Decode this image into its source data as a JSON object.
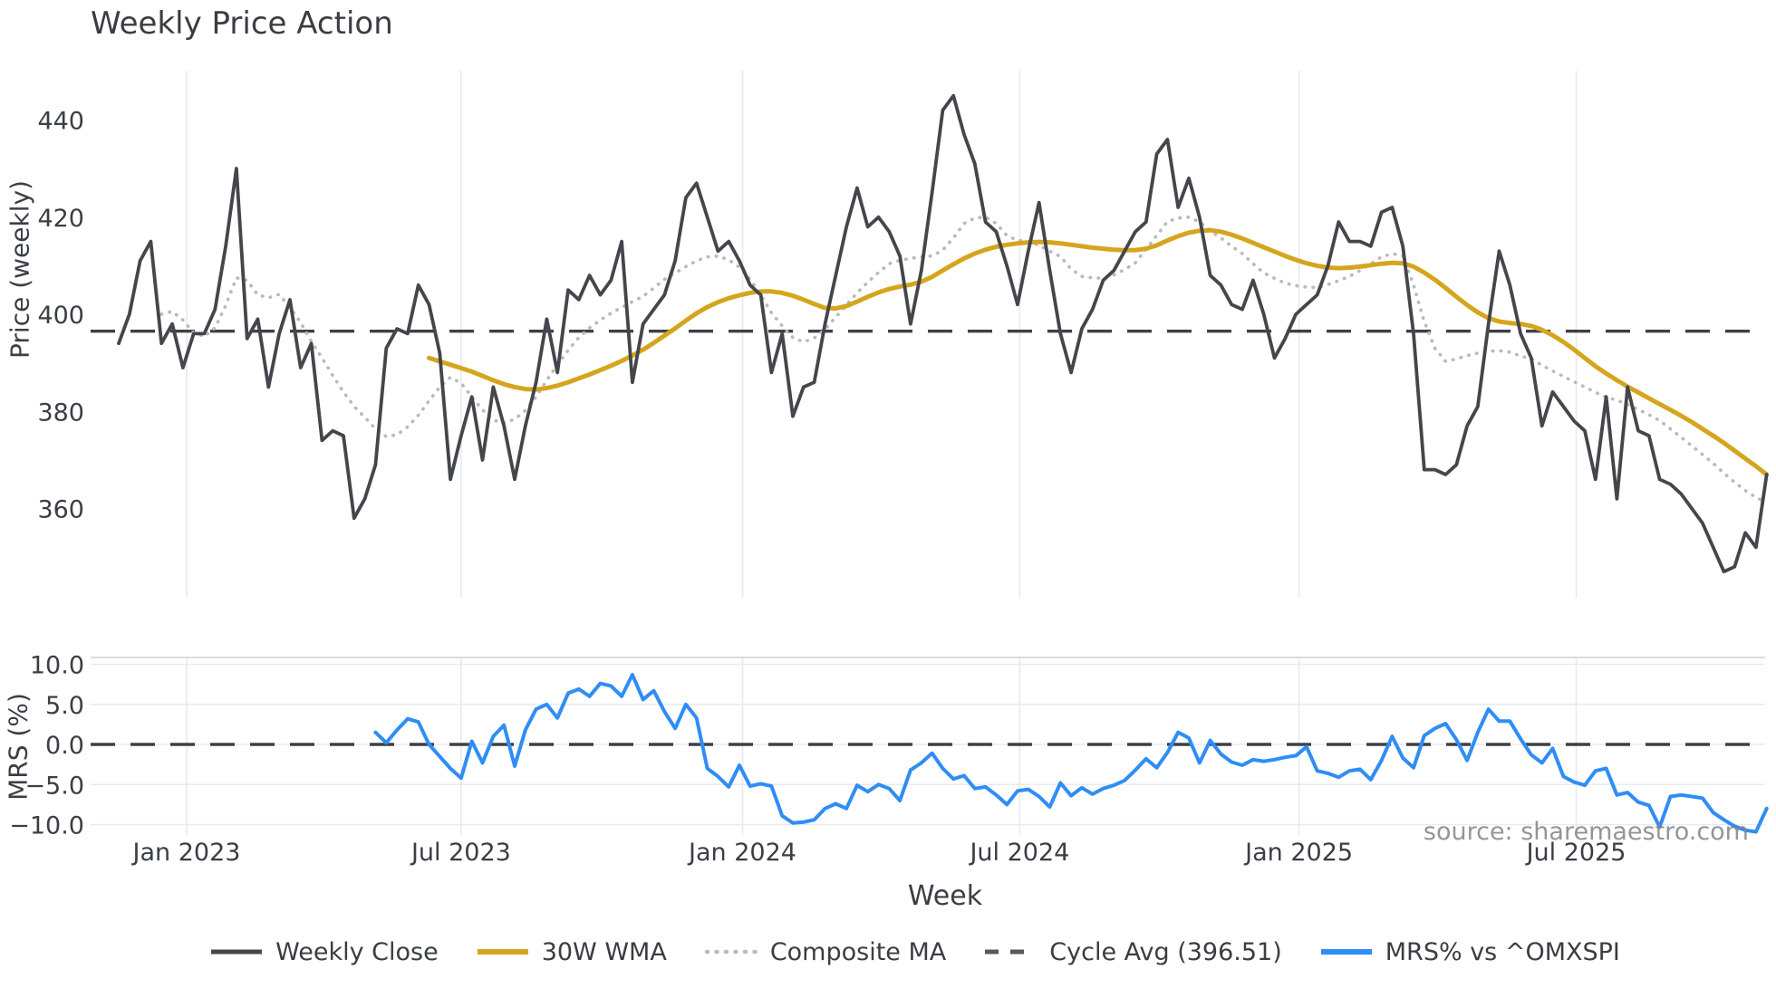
{
  "title": "Weekly Price Action",
  "source": "source: sharemaestro.com",
  "colors": {
    "weekly_close": "#43464b",
    "wma_30w": "#d5a51e",
    "composite_ma": "#b9babc",
    "cycle_avg": "#3d4045",
    "mrs_blue": "#2f8df5",
    "grid": "#e8eaf2",
    "panel_border": "#cdd0d6",
    "text": "#3a3e45",
    "source_text": "#808388"
  },
  "legend": {
    "items": [
      {
        "label": "Weekly Close",
        "color": "#43464b",
        "pattern": "solid"
      },
      {
        "label": "30W WMA",
        "color": "#d5a51e",
        "pattern": "solid"
      },
      {
        "label": "Composite MA",
        "color": "#b9babc",
        "pattern": "dotted"
      },
      {
        "label": "Cycle Avg (396.51)",
        "color": "#3d4045",
        "pattern": "dashed"
      },
      {
        "label": "MRS% vs ^OMXSPI",
        "color": "#2f8df5",
        "pattern": "solid"
      }
    ]
  },
  "chart_data": {
    "type": "line",
    "title": "Weekly Price Action",
    "xlabel": "Week",
    "x_unit": "weekly index, ~Nov 2022 to ~Nov 2025",
    "n_points": 155,
    "x_ticks": {
      "labels": [
        "Jan 2023",
        "Jul 2023",
        "Jan 2024",
        "Jul 2024",
        "Jan 2025",
        "Jul 2025"
      ],
      "positions": [
        6.35,
        32.0,
        58.3,
        84.2,
        110.3,
        136.2
      ]
    },
    "panels": [
      {
        "name": "price",
        "ylabel": "Price (weekly)",
        "ylim": [
          343,
          451
        ],
        "yticks": [
          {
            "label": "440",
            "value": 440
          },
          {
            "label": "420",
            "value": 420
          },
          {
            "label": "400",
            "value": 400
          },
          {
            "label": "380",
            "value": 380
          },
          {
            "label": "360",
            "value": 360
          }
        ],
        "ref_line": {
          "label": "Cycle Avg (396.51)",
          "value": 396.51,
          "style": "dashed"
        },
        "series": [
          {
            "name": "Weekly Close",
            "color": "#43464b",
            "style": "solid",
            "values": [
              394,
              400,
              411,
              415,
              394,
              398,
              389,
              396,
              396,
              401,
              414,
              430,
              395,
              399,
              385,
              396,
              403,
              389,
              394,
              374,
              376,
              375,
              358,
              362,
              369,
              393,
              397,
              396,
              406,
              402,
              392,
              366,
              375,
              383,
              370,
              385,
              377,
              366,
              377,
              386,
              399,
              388,
              405,
              403,
              408,
              404,
              407,
              415,
              386,
              398,
              401,
              404,
              411,
              424,
              427,
              420,
              413,
              415,
              411,
              406,
              404,
              388,
              396,
              379,
              385,
              386,
              398,
              408,
              418,
              426,
              418,
              420,
              417,
              412,
              398,
              409,
              425,
              442,
              445,
              437,
              431,
              419,
              417,
              410,
              402,
              413,
              423,
              409,
              396,
              388,
              397,
              401,
              407,
              409,
              413,
              417,
              419,
              433,
              436,
              422,
              428,
              420,
              408,
              406,
              402,
              401,
              407,
              400,
              391,
              395,
              400,
              402,
              404,
              410,
              419,
              415,
              415,
              414,
              421,
              422,
              414,
              396,
              368,
              368,
              367,
              369,
              377,
              381,
              398,
              413,
              406,
              396,
              391,
              377,
              384,
              381,
              378,
              376,
              366,
              383,
              362,
              385,
              376,
              375,
              366,
              365,
              363,
              360,
              357,
              352,
              347,
              348,
              355,
              352,
              367
            ]
          },
          {
            "name": "30W WMA",
            "color": "#d5a51e",
            "style": "solid",
            "values": [
              null,
              null,
              null,
              null,
              null,
              null,
              null,
              null,
              null,
              null,
              null,
              null,
              null,
              null,
              null,
              null,
              null,
              null,
              null,
              null,
              null,
              null,
              null,
              null,
              null,
              null,
              null,
              null,
              null,
              391.0,
              390.3,
              389.6,
              388.9,
              388.2,
              387.3,
              386.4,
              385.6,
              385.0,
              384.6,
              384.5,
              384.8,
              385.3,
              386.0,
              386.8,
              387.6,
              388.5,
              389.4,
              390.4,
              391.5,
              392.7,
              394.1,
              395.6,
              397.1,
              398.7,
              400.2,
              401.5,
              402.5,
              403.3,
              403.9,
              404.4,
              404.7,
              404.7,
              404.4,
              403.8,
              403.0,
              402.1,
              401.3,
              401.2,
              401.7,
              402.6,
              403.6,
              404.5,
              405.2,
              405.7,
              406.1,
              406.7,
              407.7,
              409.0,
              410.3,
              411.5,
              412.5,
              413.3,
              413.9,
              414.3,
              414.6,
              414.8,
              414.9,
              414.8,
              414.6,
              414.3,
              414.0,
              413.7,
              413.5,
              413.3,
              413.2,
              413.2,
              413.5,
              414.2,
              415.2,
              416.1,
              416.8,
              417.2,
              417.3,
              417.0,
              416.4,
              415.6,
              414.7,
              413.8,
              412.9,
              412.0,
              411.2,
              410.5,
              410.0,
              409.6,
              409.5,
              409.6,
              409.8,
              410.1,
              410.4,
              410.6,
              410.5,
              409.8,
              408.6,
              407.1,
              405.4,
              403.6,
              401.9,
              400.4,
              399.2,
              398.5,
              398.2,
              398.0,
              397.6,
              396.8,
              395.7,
              394.3,
              392.7,
              391.0,
              389.3,
              387.8,
              386.4,
              385.1,
              383.9,
              382.7,
              381.5,
              380.3,
              379.1,
              377.8,
              376.4,
              375.0,
              373.5,
              371.9,
              370.3,
              368.7,
              367.0
            ]
          },
          {
            "name": "Composite MA",
            "color": "#b9babc",
            "style": "dotted",
            "values": [
              null,
              null,
              null,
              null,
              400.0,
              400.6,
              398.8,
              396.2,
              395.4,
              397.2,
              401.8,
              407.5,
              407.0,
              404.0,
              403.4,
              404.1,
              401.4,
              398.3,
              394.4,
              391.0,
              387.4,
              384.0,
              381.0,
              378.8,
              376.4,
              374.8,
              375.2,
              376.8,
              379.2,
              382.2,
              385.0,
              387.0,
              385.8,
              383.0,
              380.3,
              378.2,
              377.6,
              378.4,
              380.2,
              383.0,
              386.4,
              389.6,
              392.6,
              395.2,
              397.2,
              398.8,
              400.2,
              401.4,
              402.6,
              403.7,
              405.4,
              407.2,
              408.5,
              409.8,
              411.0,
              411.8,
              412.0,
              411.2,
              409.7,
              407.2,
              404.0,
              400.3,
              397.6,
              395.2,
              394.3,
              395.1,
              396.9,
              399.4,
              401.9,
              404.4,
              406.6,
              408.6,
              410.4,
              411.1,
              411.5,
              411.8,
              412.0,
              413.2,
              415.7,
              418.7,
              419.8,
              420.0,
              418.7,
              416.2,
              415.2,
              415.0,
              414.2,
              413.0,
              411.9,
              409.3,
              407.8,
              407.5,
              407.4,
              408.1,
              409.2,
              410.6,
              413.4,
              416.2,
              419.1,
              419.8,
              420.0,
              419.0,
              417.2,
              415.7,
              414.0,
              412.5,
              410.4,
              408.5,
              407.4,
              406.4,
              405.9,
              405.6,
              405.5,
              406.1,
              406.9,
              407.8,
              409.0,
              410.4,
              411.8,
              412.5,
              412.0,
              406.0,
              398.5,
              393.0,
              390.3,
              390.8,
              391.5,
              392.0,
              392.4,
              392.5,
              392.2,
              391.4,
              390.8,
              389.5,
              388.3,
              387.2,
              386.1,
              385.0,
              383.9,
              382.9,
              382.3,
              381.4,
              380.4,
              379.3,
              378.1,
              376.4,
              374.7,
              372.9,
              371.1,
              369.3,
              367.3,
              365.4,
              363.7,
              362.3,
              361.2
            ]
          }
        ]
      },
      {
        "name": "mrs",
        "ylabel": "MRS (%)",
        "ylim": [
          -11.3,
          10.9
        ],
        "yticks": [
          {
            "label": "10.0",
            "value": 10
          },
          {
            "label": "5.0",
            "value": 5
          },
          {
            "label": "0.0",
            "value": 0
          },
          {
            "label": "−5.0",
            "value": -5
          },
          {
            "label": "−10.0",
            "value": -10
          }
        ],
        "ref_line": {
          "label": "zero line",
          "value": 0,
          "style": "dashed"
        },
        "series": [
          {
            "name": "MRS% vs ^OMXSPI",
            "color": "#2f8df5",
            "style": "solid",
            "values": [
              null,
              null,
              null,
              null,
              null,
              null,
              null,
              null,
              null,
              null,
              null,
              null,
              null,
              null,
              null,
              null,
              null,
              null,
              null,
              null,
              null,
              null,
              null,
              null,
              1.5,
              0.2,
              1.8,
              3.2,
              2.8,
              0.0,
              -1.5,
              -3.0,
              -4.2,
              0.4,
              -2.3,
              1.0,
              2.4,
              -2.7,
              1.8,
              4.4,
              5.0,
              3.3,
              6.4,
              6.9,
              6.0,
              7.6,
              7.3,
              6.0,
              8.7,
              5.6,
              6.7,
              4.1,
              2.0,
              5.0,
              3.3,
              -3.0,
              -4.0,
              -5.3,
              -2.6,
              -5.2,
              -4.9,
              -5.2,
              -8.9,
              -9.8,
              -9.7,
              -9.4,
              -8.0,
              -7.4,
              -8.0,
              -5.1,
              -5.9,
              -5.0,
              -5.5,
              -7.0,
              -3.2,
              -2.3,
              -1.1,
              -3.0,
              -4.3,
              -3.9,
              -5.5,
              -5.3,
              -6.3,
              -7.5,
              -5.8,
              -5.6,
              -6.5,
              -7.8,
              -4.8,
              -6.4,
              -5.4,
              -6.2,
              -5.5,
              -5.1,
              -4.5,
              -3.2,
              -1.8,
              -2.9,
              -1.0,
              1.5,
              0.8,
              -2.3,
              0.5,
              -1.2,
              -2.2,
              -2.6,
              -1.9,
              -2.1,
              -1.9,
              -1.6,
              -1.4,
              -0.3,
              -3.3,
              -3.6,
              -4.1,
              -3.3,
              -3.1,
              -4.4,
              -2.0,
              1.0,
              -1.7,
              -2.9,
              1.1,
              2.0,
              2.6,
              0.6,
              -2.0,
              1.5,
              4.4,
              2.9,
              2.9,
              0.7,
              -1.3,
              -2.3,
              -0.5,
              -4.0,
              -4.7,
              -5.1,
              -3.3,
              -3.0,
              -6.3,
              -6.0,
              -7.2,
              -7.6,
              -10.3,
              -6.5,
              -6.3,
              -6.5,
              -6.7,
              -8.5,
              -9.4,
              -10.2,
              -10.7,
              -10.9,
              -8.0
            ]
          }
        ]
      }
    ]
  }
}
